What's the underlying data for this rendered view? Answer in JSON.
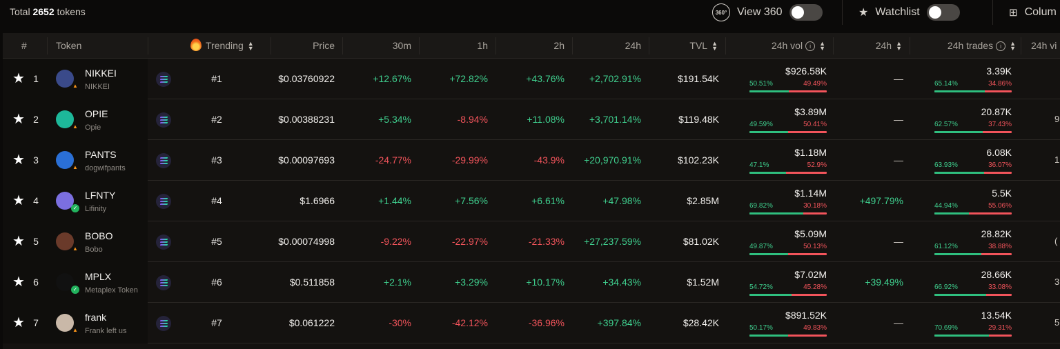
{
  "topbar": {
    "total_prefix": "Total",
    "total_count": "2652",
    "total_suffix": "tokens",
    "view360_icon_text": "360°",
    "view360_label": "View 360",
    "watchlist_label": "Watchlist",
    "columns_label": "Colum"
  },
  "headers": {
    "rank": "#",
    "token": "Token",
    "trending": "Trending",
    "price": "Price",
    "m30": "30m",
    "h1": "1h",
    "h2": "2h",
    "h24": "24h",
    "tvl": "TVL",
    "vol24": "24h vol",
    "views24": "24h",
    "trades24": "24h trades",
    "cut": "24h vi"
  },
  "rows": [
    {
      "rank": "1",
      "symbol": "NIKKEI",
      "name": "NIKKEI",
      "badge": "warn",
      "avatar_color": "#3a4a8a",
      "trending": "#1",
      "price": "$0.03760922",
      "m30": "+12.67%",
      "h1": "+72.82%",
      "h2": "+43.76%",
      "h24": "+2,702.91%",
      "tvl": "$191.54K",
      "vol": "$926.58K",
      "vol_buy": "50.51%",
      "vol_sell": "49.49%",
      "vol_buy_frac": 0.5051,
      "views": "—",
      "trades": "3.39K",
      "tr_buy": "65.14%",
      "tr_sell": "34.86%",
      "tr_buy_frac": 0.6514,
      "edge": ""
    },
    {
      "rank": "2",
      "symbol": "OPIE",
      "name": "Opie",
      "badge": "warn",
      "avatar_color": "#1db89a",
      "trending": "#2",
      "price": "$0.00388231",
      "m30": "+5.34%",
      "h1": "-8.94%",
      "h2": "+11.08%",
      "h24": "+3,701.14%",
      "tvl": "$119.48K",
      "vol": "$3.89M",
      "vol_buy": "49.59%",
      "vol_sell": "50.41%",
      "vol_buy_frac": 0.4959,
      "views": "—",
      "trades": "20.87K",
      "tr_buy": "62.57%",
      "tr_sell": "37.43%",
      "tr_buy_frac": 0.6257,
      "edge": "9"
    },
    {
      "rank": "3",
      "symbol": "PANTS",
      "name": "dogwifpants",
      "badge": "warn",
      "avatar_color": "#2a6fd6",
      "trending": "#3",
      "price": "$0.00097693",
      "m30": "-24.77%",
      "h1": "-29.99%",
      "h2": "-43.9%",
      "h24": "+20,970.91%",
      "tvl": "$102.23K",
      "vol": "$1.18M",
      "vol_buy": "47.1%",
      "vol_sell": "52.9%",
      "vol_buy_frac": 0.471,
      "views": "—",
      "trades": "6.08K",
      "tr_buy": "63.93%",
      "tr_sell": "36.07%",
      "tr_buy_frac": 0.6393,
      "edge": "1"
    },
    {
      "rank": "4",
      "symbol": "LFNTY",
      "name": "Lifinity",
      "badge": "ok",
      "avatar_color": "#7b6fe0",
      "trending": "#4",
      "price": "$1.6966",
      "m30": "+1.44%",
      "h1": "+7.56%",
      "h2": "+6.61%",
      "h24": "+47.98%",
      "tvl": "$2.85M",
      "vol": "$1.14M",
      "vol_buy": "69.82%",
      "vol_sell": "30.18%",
      "vol_buy_frac": 0.6982,
      "views": "+497.79%",
      "trades": "5.5K",
      "tr_buy": "44.94%",
      "tr_sell": "55.06%",
      "tr_buy_frac": 0.4494,
      "edge": ""
    },
    {
      "rank": "5",
      "symbol": "BOBO",
      "name": "Bobo",
      "badge": "warn",
      "avatar_color": "#6a3a2a",
      "trending": "#5",
      "price": "$0.00074998",
      "m30": "-9.22%",
      "h1": "-22.97%",
      "h2": "-21.33%",
      "h24": "+27,237.59%",
      "tvl": "$81.02K",
      "vol": "$5.09M",
      "vol_buy": "49.87%",
      "vol_sell": "50.13%",
      "vol_buy_frac": 0.4987,
      "views": "—",
      "trades": "28.82K",
      "tr_buy": "61.12%",
      "tr_sell": "38.88%",
      "tr_buy_frac": 0.6112,
      "edge": "("
    },
    {
      "rank": "6",
      "symbol": "MPLX",
      "name": "Metaplex Token",
      "badge": "ok",
      "avatar_color": "#111111",
      "trending": "#6",
      "price": "$0.511858",
      "m30": "+2.1%",
      "h1": "+3.29%",
      "h2": "+10.17%",
      "h24": "+34.43%",
      "tvl": "$1.52M",
      "vol": "$7.02M",
      "vol_buy": "54.72%",
      "vol_sell": "45.28%",
      "vol_buy_frac": 0.5472,
      "views": "+39.49%",
      "trades": "28.66K",
      "tr_buy": "66.92%",
      "tr_sell": "33.08%",
      "tr_buy_frac": 0.6692,
      "edge": "3"
    },
    {
      "rank": "7",
      "symbol": "frank",
      "name": "Frank left us",
      "badge": "warn",
      "avatar_color": "#c9b8a8",
      "trending": "#7",
      "price": "$0.061222",
      "m30": "-30%",
      "h1": "-42.12%",
      "h2": "-36.96%",
      "h24": "+397.84%",
      "tvl": "$28.42K",
      "vol": "$891.52K",
      "vol_buy": "50.17%",
      "vol_sell": "49.83%",
      "vol_buy_frac": 0.5017,
      "views": "—",
      "trades": "13.54K",
      "tr_buy": "70.69%",
      "tr_sell": "29.31%",
      "tr_buy_frac": 0.7069,
      "edge": "5"
    }
  ],
  "colors": {
    "positive": "#3fcf8e",
    "negative": "#f2545b",
    "buy_bar": "#2fbf7f",
    "sell_bar": "#f2545b",
    "warning_badge": "#f7931a",
    "verified_badge": "#22b35e"
  }
}
